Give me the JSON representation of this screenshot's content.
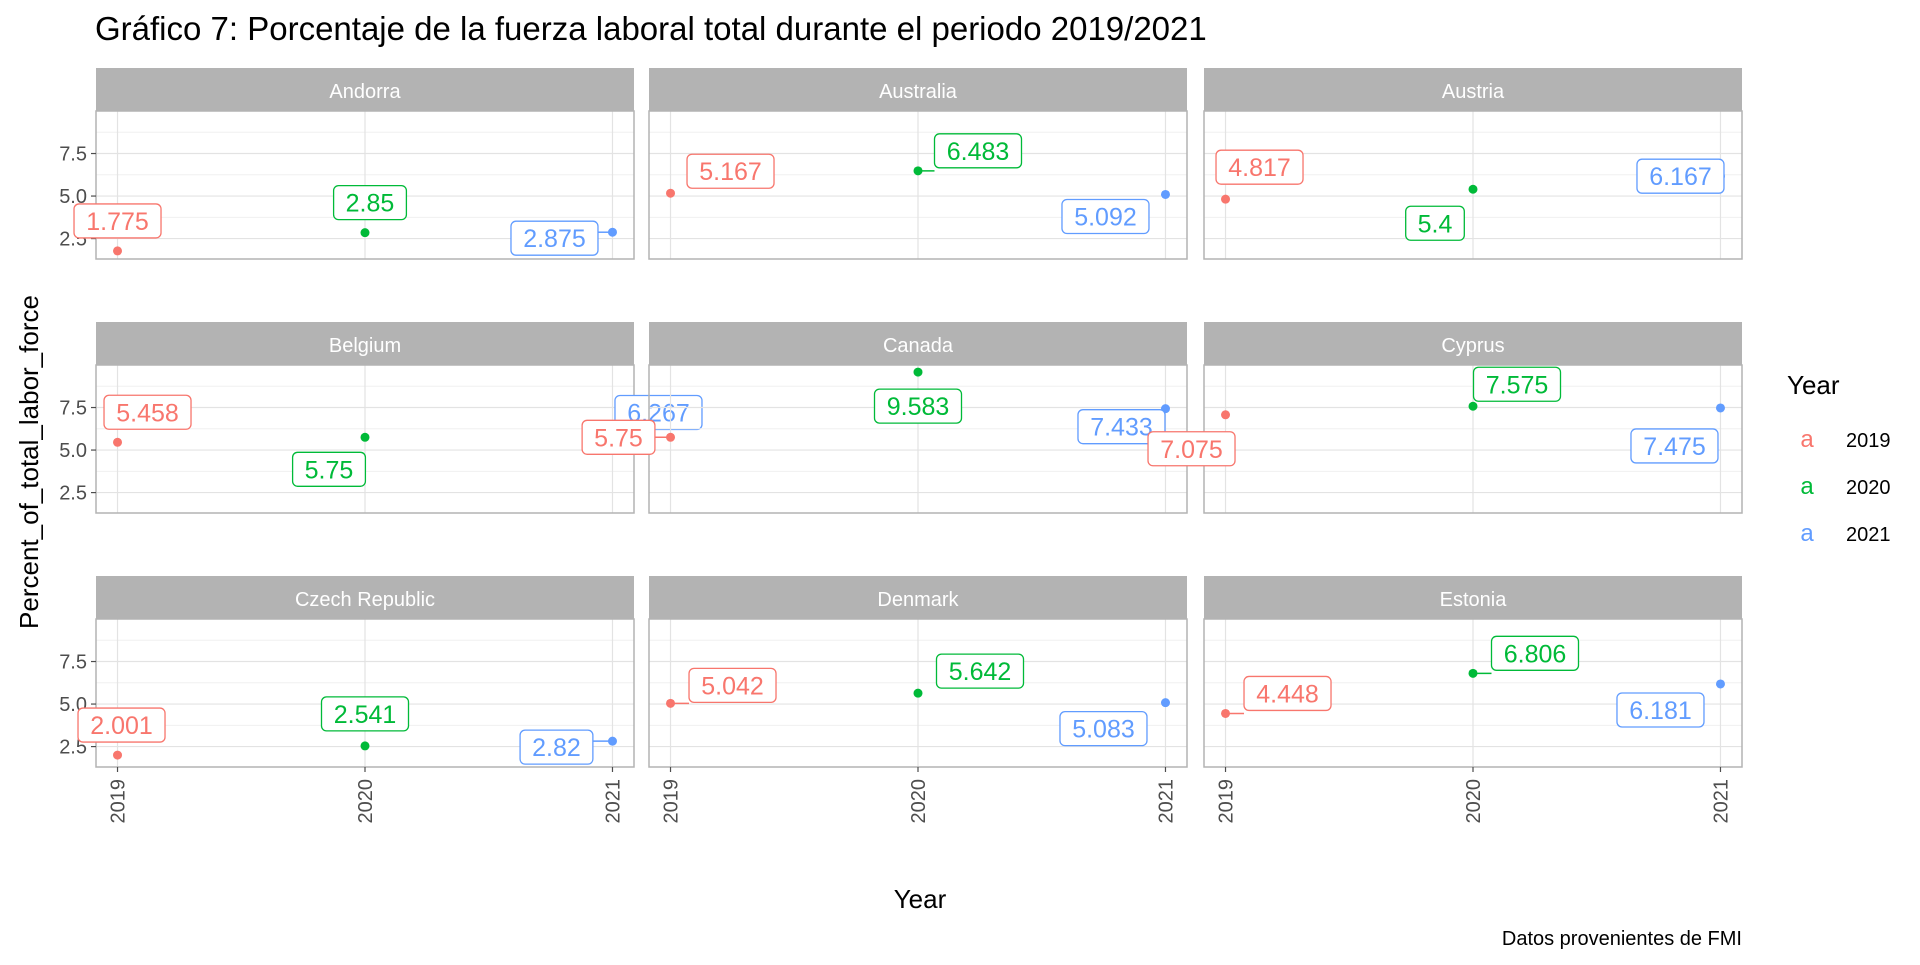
{
  "chart_data": {
    "type": "scatter",
    "title": "Gráfico 7: Porcentaje de la fuerza laboral total durante el periodo 2019/2021",
    "caption": "Datos provenientes de FMI",
    "xlabel": "Year",
    "ylabel": "Percent_of_total_labor_force",
    "x_categories": [
      "2019",
      "2020",
      "2021"
    ],
    "yticks": [
      "2.5",
      "5.0",
      "7.5"
    ],
    "ylim": [
      1.3,
      10.0
    ],
    "grid": true,
    "legend": {
      "title": "Year",
      "position": "right",
      "entries": [
        {
          "key": "a",
          "label": "2019",
          "color": "#F8766D"
        },
        {
          "key": "a",
          "label": "2020",
          "color": "#00BA38"
        },
        {
          "key": "a",
          "label": "2021",
          "color": "#619CFF"
        }
      ]
    },
    "panels": [
      {
        "country": "Andorra",
        "values": [
          1.775,
          2.85,
          2.875
        ],
        "labels": [
          "1.775",
          "2.85",
          "2.875"
        ]
      },
      {
        "country": "Australia",
        "values": [
          5.167,
          6.483,
          5.092
        ],
        "labels": [
          "5.167",
          "6.483",
          "5.092"
        ]
      },
      {
        "country": "Austria",
        "values": [
          4.817,
          5.4,
          6.167
        ],
        "labels": [
          "4.817",
          "5.4",
          "6.167"
        ]
      },
      {
        "country": "Belgium",
        "values": [
          5.458,
          5.75,
          6.267
        ],
        "labels": [
          "5.458",
          "5.75",
          "6.267"
        ]
      },
      {
        "country": "Canada",
        "values": [
          5.75,
          9.583,
          7.433
        ],
        "labels": [
          "5.75",
          "9.583",
          "7.433"
        ]
      },
      {
        "country": "Cyprus",
        "values": [
          7.075,
          7.575,
          7.475
        ],
        "labels": [
          "7.075",
          "7.575",
          "7.475"
        ]
      },
      {
        "country": "Czech Republic",
        "values": [
          2.001,
          2.541,
          2.82
        ],
        "labels": [
          "2.001",
          "2.541",
          "2.82"
        ]
      },
      {
        "country": "Denmark",
        "values": [
          5.042,
          5.642,
          5.083
        ],
        "labels": [
          "5.042",
          "5.642",
          "5.083"
        ]
      },
      {
        "country": "Estonia",
        "values": [
          4.448,
          6.806,
          6.181
        ],
        "labels": [
          "4.448",
          "6.806",
          "6.181"
        ]
      }
    ]
  }
}
